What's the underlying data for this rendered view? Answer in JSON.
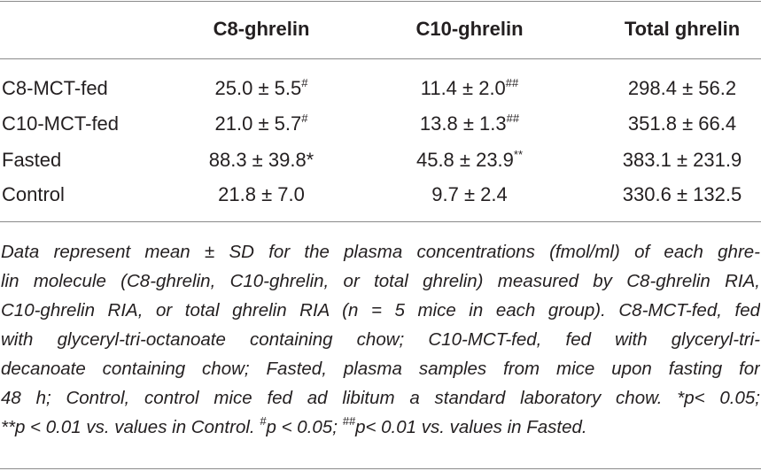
{
  "table": {
    "header": [
      "C8-ghrelin",
      "C10-ghrelin",
      "Total ghrelin"
    ],
    "rows": [
      {
        "label": "C8-MCT-fed",
        "cells": [
          {
            "text": "25.0 ± 5.5",
            "sup": "#"
          },
          {
            "text": "11.4 ± 2.0",
            "sup": "##"
          },
          {
            "text": "298.4 ± 56.2"
          }
        ]
      },
      {
        "label": "C10-MCT-fed",
        "cells": [
          {
            "text": "21.0 ± 5.7",
            "sup": "#"
          },
          {
            "text": "13.8 ± 1.3",
            "sup": "##"
          },
          {
            "text": "351.8 ± 66.4"
          }
        ]
      },
      {
        "label": "Fasted",
        "cells": [
          {
            "text": "88.3 ± 39.8*"
          },
          {
            "text": "45.8 ± 23.9",
            "sup": "**"
          },
          {
            "text": "383.1 ± 231.9"
          }
        ]
      },
      {
        "label": "Control",
        "cells": [
          {
            "text": "21.8 ± 7.0"
          },
          {
            "text": "9.7 ± 2.4"
          },
          {
            "text": "330.6 ± 132.5"
          }
        ]
      }
    ]
  },
  "footnote": {
    "lines": [
      [
        "Data represent mean ± SD for the plasma concentrations (fmol/ml) of each ghre-"
      ],
      [
        "lin molecule (C8-ghrelin, C10-ghrelin, or total ghrelin) measured by C8-ghrelin RIA,"
      ],
      [
        "C10-ghrelin RIA, or total ghrelin RIA (n = 5 mice in each group). C8-MCT-fed, fed"
      ],
      [
        "with glyceryl-tri-octanoate containing chow; C10-MCT-fed, fed with glyceryl-tri-"
      ],
      [
        "decanoate containing chow; Fasted, plasma samples from mice upon fasting for"
      ],
      [
        "48 h; Control, control mice fed ad libitum a standard laboratory chow. *p< 0.05;"
      ],
      [
        "**p < 0.01 vs. values in Control. ",
        {
          "sup": "#"
        },
        "p < 0.05; ",
        {
          "sup": "##"
        },
        "p< 0.01 vs. values in Fasted."
      ]
    ]
  }
}
